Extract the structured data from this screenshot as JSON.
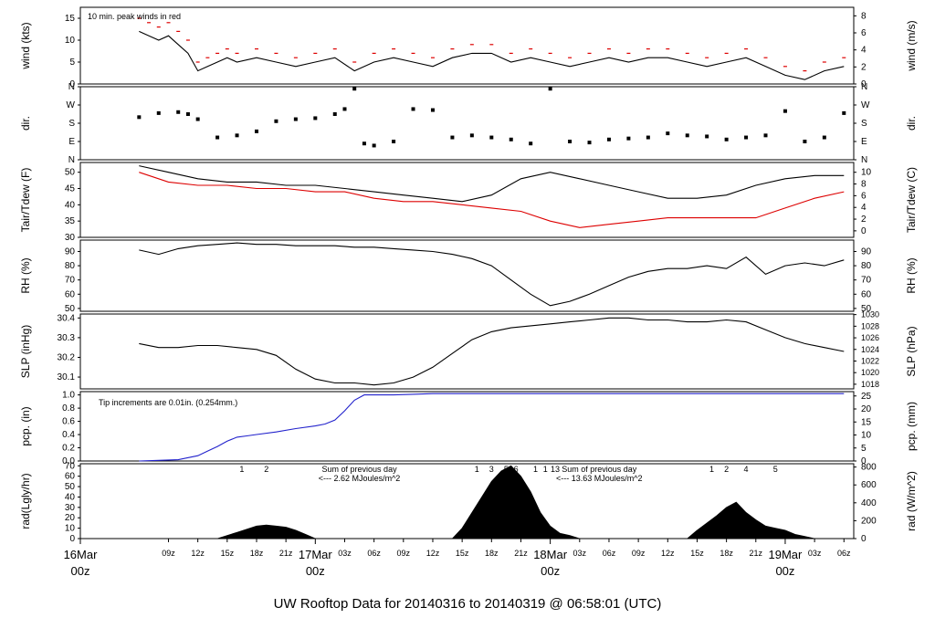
{
  "chart_data": {
    "type": "line",
    "title": "UW Rooftop Data for 20140316  to  20140319 @ 06:58:01  (UTC)",
    "time_ticks": [
      "09z",
      "12z",
      "15z",
      "18z",
      "21z",
      "03z",
      "06z",
      "09z",
      "12z",
      "15z",
      "18z",
      "21z",
      "03z",
      "06z",
      "09z",
      "12z",
      "15z",
      "18z",
      "21z",
      "03z",
      "06z"
    ],
    "day_labels": [
      {
        "date": "16Mar",
        "time": "00z"
      },
      {
        "date": "17Mar",
        "time": "00z"
      },
      {
        "date": "18Mar",
        "time": "00z"
      },
      {
        "date": "19Mar",
        "time": "00z"
      }
    ],
    "colors": {
      "title": "#2222cc",
      "day_label": "#dd0000",
      "peak": "#dd0000",
      "dewpoint": "#dd0000",
      "pcp": "#2222cc",
      "rad_note": "#9900aa"
    },
    "panels": [
      {
        "id": "wind",
        "ylabel": "wind (kts)",
        "ylabel_right": "wind (m/s)",
        "yticks": [
          0,
          5,
          10,
          15
        ],
        "yticks_right": [
          0,
          2,
          4,
          6,
          8
        ],
        "ylim": [
          0,
          17.5
        ],
        "ylim_right": [
          0,
          9
        ],
        "annotation": "10 min. peak winds in red",
        "series": [
          {
            "name": "wind",
            "x": [
              6,
              7,
              8,
              9,
              10,
              11,
              12,
              13,
              14,
              15,
              16,
              18,
              20,
              22,
              24,
              26,
              28,
              30,
              32,
              34,
              36,
              38,
              40,
              42,
              44,
              46,
              48,
              50,
              52,
              54,
              56,
              58,
              60,
              62,
              64,
              66,
              68,
              70,
              72,
              74,
              76,
              78
            ],
            "values": [
              12,
              11,
              10,
              11,
              9,
              7,
              3,
              4,
              5,
              6,
              5,
              6,
              5,
              4,
              5,
              6,
              3,
              5,
              6,
              5,
              4,
              6,
              7,
              7,
              5,
              6,
              5,
              4,
              5,
              6,
              5,
              6,
              6,
              5,
              4,
              5,
              6,
              4,
              2,
              1,
              3,
              4
            ]
          },
          {
            "name": "peak",
            "x": [
              6,
              7,
              8,
              9,
              10,
              11,
              12,
              13,
              14,
              15,
              16,
              18,
              20,
              22,
              24,
              26,
              28,
              30,
              32,
              34,
              36,
              38,
              40,
              42,
              44,
              46,
              48,
              50,
              52,
              54,
              56,
              58,
              60,
              62,
              64,
              66,
              68,
              70,
              72,
              74,
              76,
              78
            ],
            "values": [
              15,
              14,
              13,
              14,
              12,
              10,
              5,
              6,
              7,
              8,
              7,
              8,
              7,
              6,
              7,
              8,
              5,
              7,
              8,
              7,
              6,
              8,
              9,
              9,
              7,
              8,
              7,
              6,
              7,
              8,
              7,
              8,
              8,
              7,
              6,
              7,
              8,
              6,
              4,
              3,
              5,
              6
            ]
          }
        ]
      },
      {
        "id": "dir",
        "ylabel": "dir.",
        "ylabel_right": "dir.",
        "yticks": [
          "N",
          "E",
          "S",
          "W",
          "N"
        ],
        "yticks_right": [
          "N",
          "E",
          "S",
          "W",
          "N"
        ],
        "ylim": [
          0,
          360
        ],
        "series": [
          {
            "name": "direction",
            "x": [
              6,
              8,
              10,
              11,
              12,
              14,
              16,
              18,
              20,
              22,
              24,
              26,
              27,
              28,
              29,
              30,
              32,
              34,
              36,
              38,
              40,
              42,
              44,
              46,
              48,
              50,
              52,
              54,
              56,
              58,
              60,
              62,
              64,
              66,
              68,
              70,
              72,
              74,
              76,
              78
            ],
            "values": [
              210,
              230,
              235,
              225,
              200,
              110,
              120,
              140,
              190,
              200,
              205,
              225,
              250,
              350,
              80,
              70,
              90,
              250,
              245,
              110,
              120,
              110,
              100,
              80,
              350,
              90,
              85,
              100,
              105,
              110,
              130,
              120,
              115,
              100,
              110,
              120,
              240,
              90,
              110,
              230
            ]
          }
        ]
      },
      {
        "id": "temp",
        "ylabel": "Tair/Tdew (F)",
        "ylabel_right": "Tair/Tdew (C)",
        "yticks": [
          30,
          35,
          40,
          45,
          50
        ],
        "yticks_right": [
          0,
          2,
          4,
          6,
          8,
          10
        ],
        "ylim": [
          30,
          53
        ],
        "ylim_right": [
          -1.11,
          11.67
        ],
        "series": [
          {
            "name": "Tair",
            "x": [
              6,
              9,
              12,
              15,
              18,
              21,
              24,
              27,
              30,
              33,
              36,
              39,
              42,
              45,
              48,
              51,
              54,
              57,
              60,
              63,
              66,
              69,
              72,
              75,
              78
            ],
            "values": [
              52,
              50,
              48,
              47,
              47,
              46,
              46,
              45,
              44,
              43,
              42,
              41,
              43,
              48,
              50,
              48,
              46,
              44,
              42,
              42,
              43,
              46,
              48,
              49,
              49
            ]
          },
          {
            "name": "Tdew",
            "x": [
              6,
              9,
              12,
              15,
              18,
              21,
              24,
              27,
              30,
              33,
              36,
              39,
              42,
              45,
              48,
              51,
              54,
              57,
              60,
              63,
              66,
              69,
              72,
              75,
              78
            ],
            "values": [
              50,
              47,
              46,
              46,
              45,
              45,
              44,
              44,
              42,
              41,
              41,
              40,
              39,
              38,
              35,
              33,
              34,
              35,
              36,
              36,
              36,
              36,
              39,
              42,
              44
            ]
          }
        ]
      },
      {
        "id": "rh",
        "ylabel": "RH (%)",
        "ylabel_right": "RH (%)",
        "yticks": [
          50,
          60,
          70,
          80,
          90
        ],
        "yticks_right": [
          50,
          60,
          70,
          80,
          90
        ],
        "ylim": [
          48,
          98
        ],
        "series": [
          {
            "name": "RH",
            "x": [
              6,
              8,
              10,
              12,
              14,
              16,
              18,
              20,
              22,
              24,
              26,
              28,
              30,
              32,
              34,
              36,
              38,
              40,
              42,
              44,
              46,
              48,
              50,
              52,
              54,
              56,
              58,
              60,
              62,
              64,
              66,
              68,
              70,
              72,
              74,
              76,
              78
            ],
            "values": [
              91,
              88,
              92,
              94,
              95,
              96,
              95,
              95,
              94,
              94,
              94,
              93,
              93,
              92,
              91,
              90,
              88,
              85,
              80,
              70,
              60,
              52,
              55,
              60,
              66,
              72,
              76,
              78,
              78,
              80,
              78,
              86,
              74,
              80,
              82,
              80,
              84
            ]
          }
        ]
      },
      {
        "id": "slp",
        "ylabel": "SLP (inHg)",
        "ylabel_right": "SLP (hPa)",
        "yticks": [
          30.1,
          30.2,
          30.3,
          30.4
        ],
        "yticks_right": [
          1018,
          1020,
          1022,
          1024,
          1026,
          1028,
          1030
        ],
        "ylim": [
          30.04,
          30.42
        ],
        "ylim_right": [
          1017.2,
          1030.1
        ],
        "series": [
          {
            "name": "SLP",
            "x": [
              6,
              8,
              10,
              12,
              14,
              16,
              18,
              20,
              22,
              24,
              26,
              28,
              30,
              32,
              34,
              36,
              38,
              40,
              42,
              44,
              46,
              48,
              50,
              52,
              54,
              56,
              58,
              60,
              62,
              64,
              66,
              68,
              70,
              72,
              74,
              76,
              78
            ],
            "values": [
              30.27,
              30.25,
              30.25,
              30.26,
              30.26,
              30.25,
              30.24,
              30.21,
              30.14,
              30.09,
              30.07,
              30.07,
              30.06,
              30.07,
              30.1,
              30.15,
              30.22,
              30.29,
              30.33,
              30.35,
              30.36,
              30.37,
              30.38,
              30.39,
              30.4,
              30.4,
              30.39,
              30.39,
              30.38,
              30.38,
              30.39,
              30.38,
              30.34,
              30.3,
              30.27,
              30.25,
              30.23
            ]
          }
        ]
      },
      {
        "id": "pcp",
        "ylabel": "pcp. (in)",
        "ylabel_right": "pcp. (mm)",
        "yticks": [
          0.0,
          0.2,
          0.4,
          0.6,
          0.8,
          1.0
        ],
        "yticks_right": [
          0,
          5,
          10,
          15,
          20,
          25
        ],
        "ylim": [
          0,
          1.05
        ],
        "ylim_right": [
          0,
          26.67
        ],
        "annotation": "Tip increments are 0.01in. (0.254mm.)",
        "series": [
          {
            "name": "pcp",
            "x": [
              6,
              8,
              10,
              12,
              13,
              14,
              15,
              16,
              17,
              18,
              20,
              22,
              24,
              25,
              26,
              27,
              28,
              29,
              30,
              32,
              34,
              36,
              78
            ],
            "values": [
              0,
              0.01,
              0.02,
              0.08,
              0.15,
              0.22,
              0.3,
              0.36,
              0.38,
              0.4,
              0.44,
              0.49,
              0.53,
              0.56,
              0.62,
              0.76,
              0.92,
              1.0,
              1.0,
              1.0,
              1.01,
              1.02,
              1.02
            ]
          }
        ]
      },
      {
        "id": "rad",
        "ylabel": "rad(Lgly/hr)",
        "ylabel_right": "rad (W/m^2)",
        "yticks": [
          0,
          10,
          20,
          30,
          40,
          50,
          60,
          70
        ],
        "yticks_right": [
          0,
          200,
          400,
          600,
          800
        ],
        "ylim": [
          0,
          72
        ],
        "ylim_right": [
          0,
          837
        ],
        "series": [
          {
            "name": "radiation",
            "x": [
              14,
              15,
              16,
              17,
              18,
              19,
              20,
              21,
              22,
              23,
              24,
              38,
              39,
              40,
              41,
              42,
              43,
              44,
              45,
              46,
              47,
              48,
              49,
              50,
              51,
              62,
              63,
              64,
              65,
              66,
              67,
              68,
              69,
              70,
              71,
              72,
              73,
              74,
              75
            ],
            "values": [
              0,
              3,
              6,
              9,
              12,
              13,
              12,
              11,
              8,
              4,
              0,
              0,
              10,
              25,
              40,
              55,
              65,
              70,
              60,
              45,
              25,
              12,
              5,
              3,
              0,
              0,
              8,
              15,
              22,
              30,
              35,
              25,
              18,
              12,
              10,
              8,
              4,
              2,
              0
            ]
          }
        ],
        "hour_marks": [
          {
            "x": 16.5,
            "label": "1"
          },
          {
            "x": 19,
            "label": "2"
          },
          {
            "x": 40.5,
            "label": "1"
          },
          {
            "x": 42,
            "label": "3"
          },
          {
            "x": 43.5,
            "label": "5"
          },
          {
            "x": 44.5,
            "label": "6"
          },
          {
            "x": 46.5,
            "label": "1"
          },
          {
            "x": 47.5,
            "label": "1"
          },
          {
            "x": 48.5,
            "label": "13"
          },
          {
            "x": 64.5,
            "label": "1"
          },
          {
            "x": 66,
            "label": "2"
          },
          {
            "x": 68,
            "label": "4"
          },
          {
            "x": 71,
            "label": "5"
          }
        ],
        "notes": [
          {
            "x": 28.5,
            "line1": "Sum of previous day",
            "line2": "<--- 2.62 MJoules/m^2"
          },
          {
            "x": 53,
            "line1": "Sum of previous day",
            "line2": "<--- 13.63 MJoules/m^2"
          }
        ]
      }
    ]
  }
}
